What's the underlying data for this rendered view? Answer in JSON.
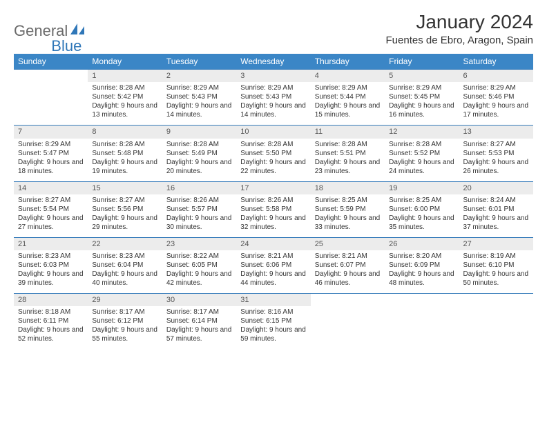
{
  "logo": {
    "part1": "General",
    "part2": "Blue"
  },
  "title": "January 2024",
  "location": "Fuentes de Ebro, Aragon, Spain",
  "colors": {
    "header_bg": "#3b86c6",
    "accent": "#2f77b8",
    "daynum_bg": "#ececec",
    "text": "#333333",
    "logo_gray": "#6b6b6b"
  },
  "weekdays": [
    "Sunday",
    "Monday",
    "Tuesday",
    "Wednesday",
    "Thursday",
    "Friday",
    "Saturday"
  ],
  "weeks": [
    [
      null,
      {
        "n": "1",
        "sr": "8:28 AM",
        "ss": "5:42 PM",
        "dl": "9 hours and 13 minutes."
      },
      {
        "n": "2",
        "sr": "8:29 AM",
        "ss": "5:43 PM",
        "dl": "9 hours and 14 minutes."
      },
      {
        "n": "3",
        "sr": "8:29 AM",
        "ss": "5:43 PM",
        "dl": "9 hours and 14 minutes."
      },
      {
        "n": "4",
        "sr": "8:29 AM",
        "ss": "5:44 PM",
        "dl": "9 hours and 15 minutes."
      },
      {
        "n": "5",
        "sr": "8:29 AM",
        "ss": "5:45 PM",
        "dl": "9 hours and 16 minutes."
      },
      {
        "n": "6",
        "sr": "8:29 AM",
        "ss": "5:46 PM",
        "dl": "9 hours and 17 minutes."
      }
    ],
    [
      {
        "n": "7",
        "sr": "8:29 AM",
        "ss": "5:47 PM",
        "dl": "9 hours and 18 minutes."
      },
      {
        "n": "8",
        "sr": "8:28 AM",
        "ss": "5:48 PM",
        "dl": "9 hours and 19 minutes."
      },
      {
        "n": "9",
        "sr": "8:28 AM",
        "ss": "5:49 PM",
        "dl": "9 hours and 20 minutes."
      },
      {
        "n": "10",
        "sr": "8:28 AM",
        "ss": "5:50 PM",
        "dl": "9 hours and 22 minutes."
      },
      {
        "n": "11",
        "sr": "8:28 AM",
        "ss": "5:51 PM",
        "dl": "9 hours and 23 minutes."
      },
      {
        "n": "12",
        "sr": "8:28 AM",
        "ss": "5:52 PM",
        "dl": "9 hours and 24 minutes."
      },
      {
        "n": "13",
        "sr": "8:27 AM",
        "ss": "5:53 PM",
        "dl": "9 hours and 26 minutes."
      }
    ],
    [
      {
        "n": "14",
        "sr": "8:27 AM",
        "ss": "5:54 PM",
        "dl": "9 hours and 27 minutes."
      },
      {
        "n": "15",
        "sr": "8:27 AM",
        "ss": "5:56 PM",
        "dl": "9 hours and 29 minutes."
      },
      {
        "n": "16",
        "sr": "8:26 AM",
        "ss": "5:57 PM",
        "dl": "9 hours and 30 minutes."
      },
      {
        "n": "17",
        "sr": "8:26 AM",
        "ss": "5:58 PM",
        "dl": "9 hours and 32 minutes."
      },
      {
        "n": "18",
        "sr": "8:25 AM",
        "ss": "5:59 PM",
        "dl": "9 hours and 33 minutes."
      },
      {
        "n": "19",
        "sr": "8:25 AM",
        "ss": "6:00 PM",
        "dl": "9 hours and 35 minutes."
      },
      {
        "n": "20",
        "sr": "8:24 AM",
        "ss": "6:01 PM",
        "dl": "9 hours and 37 minutes."
      }
    ],
    [
      {
        "n": "21",
        "sr": "8:23 AM",
        "ss": "6:03 PM",
        "dl": "9 hours and 39 minutes."
      },
      {
        "n": "22",
        "sr": "8:23 AM",
        "ss": "6:04 PM",
        "dl": "9 hours and 40 minutes."
      },
      {
        "n": "23",
        "sr": "8:22 AM",
        "ss": "6:05 PM",
        "dl": "9 hours and 42 minutes."
      },
      {
        "n": "24",
        "sr": "8:21 AM",
        "ss": "6:06 PM",
        "dl": "9 hours and 44 minutes."
      },
      {
        "n": "25",
        "sr": "8:21 AM",
        "ss": "6:07 PM",
        "dl": "9 hours and 46 minutes."
      },
      {
        "n": "26",
        "sr": "8:20 AM",
        "ss": "6:09 PM",
        "dl": "9 hours and 48 minutes."
      },
      {
        "n": "27",
        "sr": "8:19 AM",
        "ss": "6:10 PM",
        "dl": "9 hours and 50 minutes."
      }
    ],
    [
      {
        "n": "28",
        "sr": "8:18 AM",
        "ss": "6:11 PM",
        "dl": "9 hours and 52 minutes."
      },
      {
        "n": "29",
        "sr": "8:17 AM",
        "ss": "6:12 PM",
        "dl": "9 hours and 55 minutes."
      },
      {
        "n": "30",
        "sr": "8:17 AM",
        "ss": "6:14 PM",
        "dl": "9 hours and 57 minutes."
      },
      {
        "n": "31",
        "sr": "8:16 AM",
        "ss": "6:15 PM",
        "dl": "9 hours and 59 minutes."
      },
      null,
      null,
      null
    ]
  ]
}
